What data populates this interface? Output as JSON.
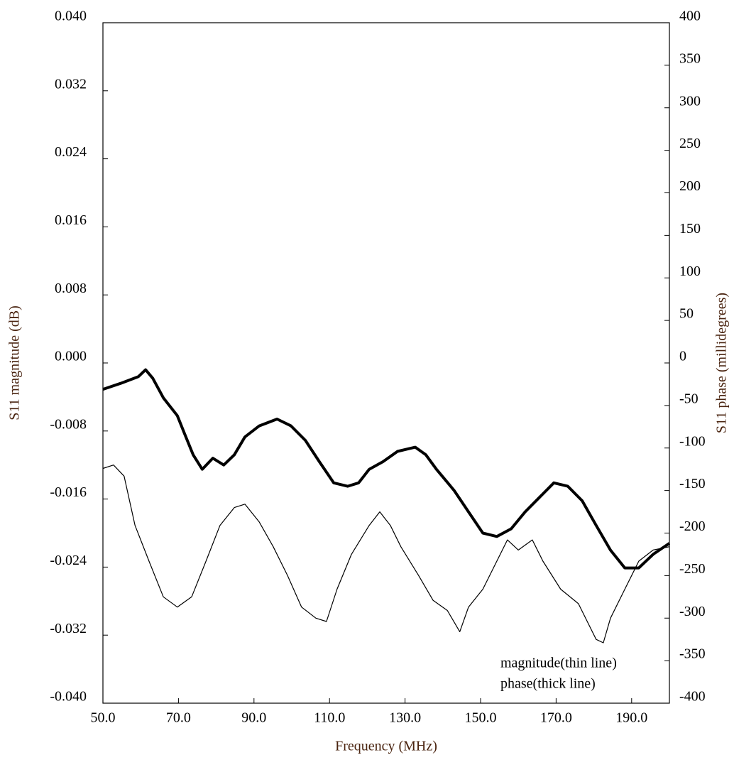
{
  "chart_data": {
    "type": "line",
    "x_label": "Frequency (MHz)",
    "y_label": "S11 magnitude (dB)",
    "y2_label": "S11 phase (millidegrees)",
    "annotations": [
      "magnitude(thin line)",
      "phase(thick line)"
    ],
    "xlim": [
      50,
      200
    ],
    "xticks": [
      {
        "value": 50,
        "label": "50.0"
      },
      {
        "value": 70,
        "label": "70.0"
      },
      {
        "value": 90,
        "label": "90.0"
      },
      {
        "value": 110,
        "label": "110.0"
      },
      {
        "value": 130,
        "label": "130.0"
      },
      {
        "value": 150,
        "label": "150.0"
      },
      {
        "value": 170,
        "label": "170.0"
      },
      {
        "value": 190,
        "label": "190.0"
      }
    ],
    "ylim": [
      -0.04,
      0.04
    ],
    "yticks": [
      {
        "value": -0.04,
        "label": "-0.040"
      },
      {
        "value": -0.032,
        "label": "-0.032"
      },
      {
        "value": -0.024,
        "label": "-0.024"
      },
      {
        "value": -0.016,
        "label": "-0.016"
      },
      {
        "value": -0.008,
        "label": "-0.008"
      },
      {
        "value": 0,
        "label": "0.000"
      },
      {
        "value": 0.008,
        "label": "0.008"
      },
      {
        "value": 0.016,
        "label": "0.016"
      },
      {
        "value": 0.024,
        "label": "0.024"
      },
      {
        "value": 0.032,
        "label": "0.032"
      },
      {
        "value": 0.04,
        "label": "0.040"
      }
    ],
    "y2lim": [
      -400,
      400
    ],
    "y2ticks": [
      -400,
      -350,
      -300,
      -250,
      -200,
      -150,
      -100,
      -50,
      0,
      50,
      100,
      150,
      200,
      250,
      300,
      350,
      400
    ],
    "series": [
      {
        "name": "magnitude",
        "color": "#000000",
        "width": 1.2,
        "axis": "y",
        "x": [
          50,
          52.8,
          55.6,
          58.5,
          62.2,
          66.0,
          69.7,
          73.5,
          77.3,
          81.0,
          84.8,
          87.6,
          91.4,
          95.1,
          98.9,
          102.6,
          106.4,
          109.2,
          112.0,
          115.8,
          120.5,
          123.3,
          126.1,
          128.9,
          133.6,
          137.4,
          141.2,
          144.5,
          146.8,
          150.6,
          153.4,
          157.1,
          160.0,
          163.7,
          166.5,
          171.2,
          175.9,
          180.6,
          182.5,
          184.4,
          188.2,
          191.9,
          195.7,
          200
        ],
        "values": [
          -0.0124,
          -0.012,
          -0.0133,
          -0.0191,
          -0.0233,
          -0.0275,
          -0.0287,
          -0.0275,
          -0.0233,
          -0.0191,
          -0.017,
          -0.0166,
          -0.0187,
          -0.0216,
          -0.025,
          -0.0287,
          -0.03,
          -0.0304,
          -0.0266,
          -0.0225,
          -0.0191,
          -0.0175,
          -0.0191,
          -0.0216,
          -0.025,
          -0.0279,
          -0.0291,
          -0.0316,
          -0.0287,
          -0.0266,
          -0.0241,
          -0.0208,
          -0.022,
          -0.0208,
          -0.0233,
          -0.0266,
          -0.0283,
          -0.0325,
          -0.0329,
          -0.03,
          -0.0266,
          -0.0233,
          -0.022,
          -0.0216
        ]
      },
      {
        "name": "phase",
        "color": "#000000",
        "width": 4,
        "axis": "y2",
        "x": [
          50,
          54.7,
          59.4,
          61.3,
          63.2,
          66.0,
          69.7,
          71.6,
          73.9,
          76.3,
          79.1,
          82.0,
          84.8,
          87.6,
          91.4,
          96.1,
          99.8,
          103.6,
          107.3,
          111.1,
          114.8,
          117.7,
          120.5,
          124.2,
          128.0,
          132.7,
          135.5,
          138.3,
          143.0,
          146.8,
          150.6,
          154.3,
          158.1,
          161.8,
          165.6,
          169.4,
          173.1,
          176.9,
          180.6,
          184.4,
          188.2,
          191.9,
          195.7,
          200
        ],
        "values": [
          -31,
          -24,
          -16,
          -8,
          -18,
          -41,
          -62,
          -83,
          -108,
          -125,
          -112,
          -120,
          -108,
          -87,
          -74,
          -66,
          -74,
          -91,
          -116,
          -141,
          -145,
          -141,
          -125,
          -116,
          -104,
          -99,
          -108,
          -125,
          -150,
          -175,
          -200,
          -204,
          -195,
          -175,
          -158,
          -141,
          -145,
          -162,
          -191,
          -220,
          -241,
          -241,
          -225,
          -212
        ]
      }
    ]
  }
}
